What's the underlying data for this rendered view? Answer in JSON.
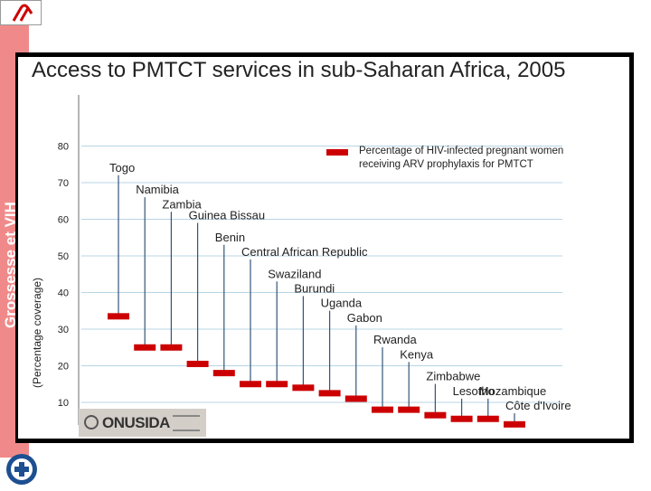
{
  "side_text": "Grossesse et VIH",
  "colors": {
    "bar": "#cc0000",
    "stem": "#335577",
    "grid": "#b8d4e6",
    "band": "#f08a8a",
    "frame": "#000000"
  },
  "icons": [
    "ribbon-logo-icon",
    "onusida-emblem-icon",
    "medecins-du-monde-logo-icon"
  ],
  "chart_data": {
    "type": "bar",
    "title": "Access to PMTCT services in sub-Saharan Africa, 2005",
    "ylabel": "(Percentage coverage)",
    "ylim": [
      5,
      83
    ],
    "yticks": [
      10,
      20,
      30,
      40,
      50,
      60,
      70,
      80
    ],
    "grid": true,
    "legend": {
      "label_line1": "Percentage of HIV-infected pregnant women",
      "label_line2": "receiving ARV prophylaxis for PMTCT",
      "position": "top-right"
    },
    "categories": [
      "Togo",
      "Namibia",
      "Zambia",
      "Guinea Bissau",
      "Benin",
      "Central African Republic",
      "Swaziland",
      "Burundi",
      "Uganda",
      "Gabon",
      "Rwanda",
      "Kenya",
      "Zimbabwe",
      "Lesotho",
      "Mozambique",
      "Côte d'Ivoire"
    ],
    "values": [
      33.5,
      25,
      25,
      20.5,
      18,
      15,
      15,
      14,
      12.5,
      11,
      8,
      8,
      6.5,
      5.5,
      5.5,
      4
    ],
    "label_levels": [
      74,
      68,
      64,
      61,
      55,
      51,
      45,
      41,
      37,
      33,
      27,
      23,
      17,
      13,
      13,
      9
    ]
  },
  "logo": {
    "onusida_text": "ONUSIDA"
  }
}
